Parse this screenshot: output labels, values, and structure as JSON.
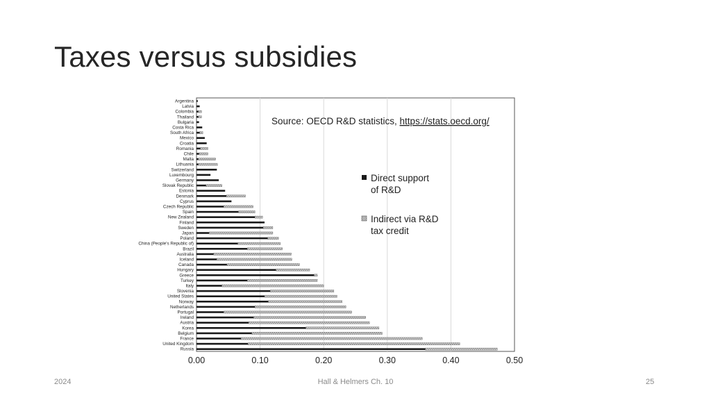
{
  "slide": {
    "title": "Taxes versus subsidies",
    "footer_left": "2024",
    "footer_center": "Hall & Helmers Ch. 10",
    "footer_right": "25"
  },
  "colors": {
    "direct": "#1a1a1a",
    "indirect": "#bdbdbd",
    "grid": "#d9d9d9",
    "frame": "#555555"
  },
  "chart_data": {
    "type": "bar",
    "orientation": "horizontal",
    "stacked": true,
    "source_note": "Source: OECD R&D statistics, ",
    "source_link": "https://stats.oecd.org/",
    "xlim": [
      0,
      0.5
    ],
    "xticks": [
      "0.00",
      "0.10",
      "0.20",
      "0.30",
      "0.40",
      "0.50"
    ],
    "grid": "vertical",
    "legend_position": "right",
    "legend": [
      {
        "line1": "Direct support",
        "line2": "of R&D"
      },
      {
        "line1": "Indirect via R&D",
        "line2": "tax credit"
      }
    ],
    "categories": [
      "Argentina",
      "Latvia",
      "Colombia",
      "Thailand",
      "Bulgaria",
      "Costa Rica",
      "South Africa",
      "Mexico",
      "Croatia",
      "Romania",
      "Chile",
      "Malta",
      "Lithuania",
      "Switzerland",
      "Luxembourg",
      "Germany",
      "Slovak Republic",
      "Estonia",
      "Denmark",
      "Cyprus",
      "Czech Republic",
      "Spain",
      "New Zealand",
      "Finland",
      "Sweden",
      "Japan",
      "Poland",
      "China (People's Republic of)",
      "Brazil",
      "Australia",
      "Iceland",
      "Canada",
      "Hungary",
      "Greece",
      "Turkey",
      "Italy",
      "Slovenia",
      "United States",
      "Norway",
      "Netherlands",
      "Portugal",
      "Ireland",
      "Austria",
      "Korea",
      "Belgium",
      "France",
      "United Kingdom",
      "Russia"
    ],
    "series": [
      {
        "name": "Direct support of R&D",
        "values": [
          0.002,
          0.005,
          0.003,
          0.003,
          0.004,
          0.009,
          0.005,
          0.013,
          0.016,
          0.006,
          0.004,
          0.003,
          0.003,
          0.032,
          0.022,
          0.035,
          0.015,
          0.045,
          0.047,
          0.055,
          0.043,
          0.066,
          0.092,
          0.107,
          0.105,
          0.02,
          0.112,
          0.065,
          0.08,
          0.027,
          0.032,
          0.048,
          0.125,
          0.185,
          0.08,
          0.04,
          0.116,
          0.107,
          0.113,
          0.092,
          0.043,
          0.09,
          0.082,
          0.172,
          0.087,
          0.07,
          0.081,
          0.36
        ]
      },
      {
        "name": "Indirect via R&D tax credit",
        "values": [
          0.0,
          0.0,
          0.005,
          0.005,
          0.0,
          0.0,
          0.005,
          0.0,
          0.0,
          0.012,
          0.014,
          0.027,
          0.03,
          0.0,
          0.0,
          0.0,
          0.025,
          0.0,
          0.03,
          0.0,
          0.046,
          0.026,
          0.012,
          0.0,
          0.015,
          0.1,
          0.017,
          0.067,
          0.055,
          0.122,
          0.118,
          0.114,
          0.053,
          0.005,
          0.11,
          0.16,
          0.1,
          0.114,
          0.116,
          0.143,
          0.201,
          0.176,
          0.19,
          0.115,
          0.205,
          0.285,
          0.333,
          0.113
        ]
      }
    ]
  }
}
